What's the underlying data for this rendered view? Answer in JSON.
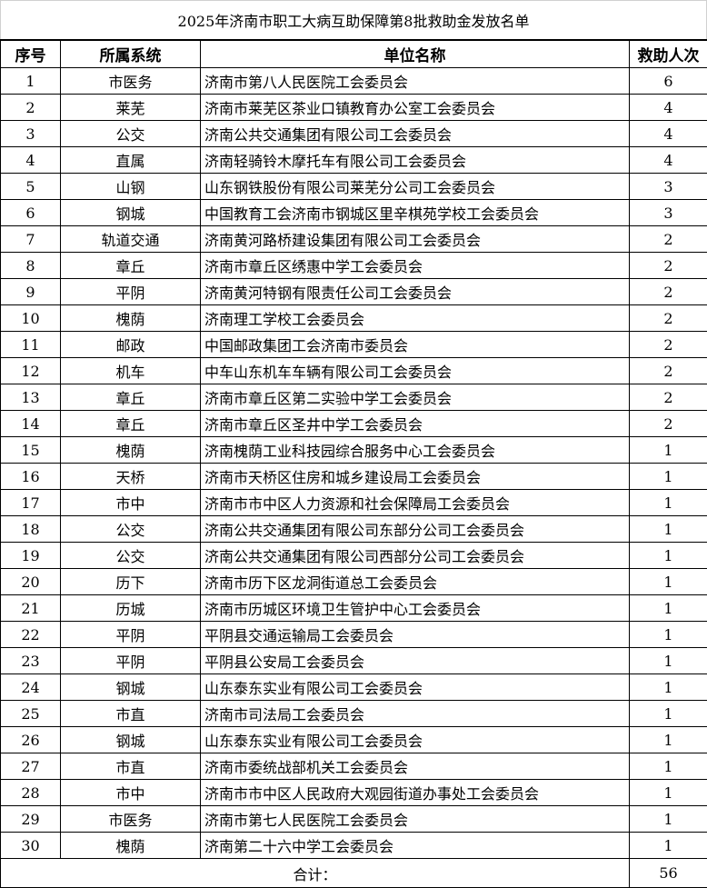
{
  "title": "2025年济南市职工大病互助保障第8批救助金发放名单",
  "headers": [
    "序号",
    "所属系统",
    "单位名称",
    "救助人次"
  ],
  "rows": [
    [
      "1",
      "市医务",
      "济南市第八人民医院工会委员会",
      "6"
    ],
    [
      "2",
      "莱芜",
      "济南市莱芜区茶业口镇教育办公室工会委员会",
      "4"
    ],
    [
      "3",
      "公交",
      "济南公共交通集团有限公司工会委员会",
      "4"
    ],
    [
      "4",
      "直属",
      "济南轻骑铃木摩托车有限公司工会委员会",
      "4"
    ],
    [
      "5",
      "山钢",
      "山东钢铁股份有限公司莱芜分公司工会委员会",
      "3"
    ],
    [
      "6",
      "钢城",
      "中国教育工会济南市钢城区里辛棋苑学校工会委员会",
      "3"
    ],
    [
      "7",
      "轨道交通",
      "济南黄河路桥建设集团有限公司工会委员会",
      "2"
    ],
    [
      "8",
      "章丘",
      "济南市章丘区绣惠中学工会委员会",
      "2"
    ],
    [
      "9",
      "平阴",
      "济南黄河特钢有限责任公司工会委员会",
      "2"
    ],
    [
      "10",
      "槐荫",
      "济南理工学校工会委员会",
      "2"
    ],
    [
      "11",
      "邮政",
      "中国邮政集团工会济南市委员会",
      "2"
    ],
    [
      "12",
      "机车",
      "中车山东机车车辆有限公司工会委员会",
      "2"
    ],
    [
      "13",
      "章丘",
      "济南市章丘区第二实验中学工会委员会",
      "2"
    ],
    [
      "14",
      "章丘",
      "济南市章丘区圣井中学工会委员会",
      "2"
    ],
    [
      "15",
      "槐荫",
      "济南槐荫工业科技园综合服务中心工会委员会",
      "1"
    ],
    [
      "16",
      "天桥",
      "济南市天桥区住房和城乡建设局工会委员会",
      "1"
    ],
    [
      "17",
      "市中",
      "济南市市中区人力资源和社会保障局工会委员会",
      "1"
    ],
    [
      "18",
      "公交",
      "济南公共交通集团有限公司东部分公司工会委员会",
      "1"
    ],
    [
      "19",
      "公交",
      "济南公共交通集团有限公司西部分公司工会委员会",
      "1"
    ],
    [
      "20",
      "历下",
      "济南市历下区龙洞街道总工会委员会",
      "1"
    ],
    [
      "21",
      "历城",
      "济南市历城区环境卫生管护中心工会委员会",
      "1"
    ],
    [
      "22",
      "平阴",
      "平阴县交通运输局工会委员会",
      "1"
    ],
    [
      "23",
      "平阴",
      "平阴县公安局工会委员会",
      "1"
    ],
    [
      "24",
      "钢城",
      "山东泰东实业有限公司工会委员会",
      "1"
    ],
    [
      "25",
      "市直",
      "济南市司法局工会委员会",
      "1"
    ],
    [
      "26",
      "钢城",
      "山东泰东实业有限公司工会委员会",
      "1"
    ],
    [
      "27",
      "市直",
      "济南市委统战部机关工会委员会",
      "1"
    ],
    [
      "28",
      "市中",
      "济南市市中区人民政府大观园街道办事处工会委员会",
      "1"
    ],
    [
      "29",
      "市医务",
      "济南市第七人民医院工会委员会",
      "1"
    ],
    [
      "30",
      "槐荫",
      "济南第二十六中学工会委员会",
      "1"
    ]
  ],
  "total": {
    "label": "合计：",
    "value": "56"
  }
}
